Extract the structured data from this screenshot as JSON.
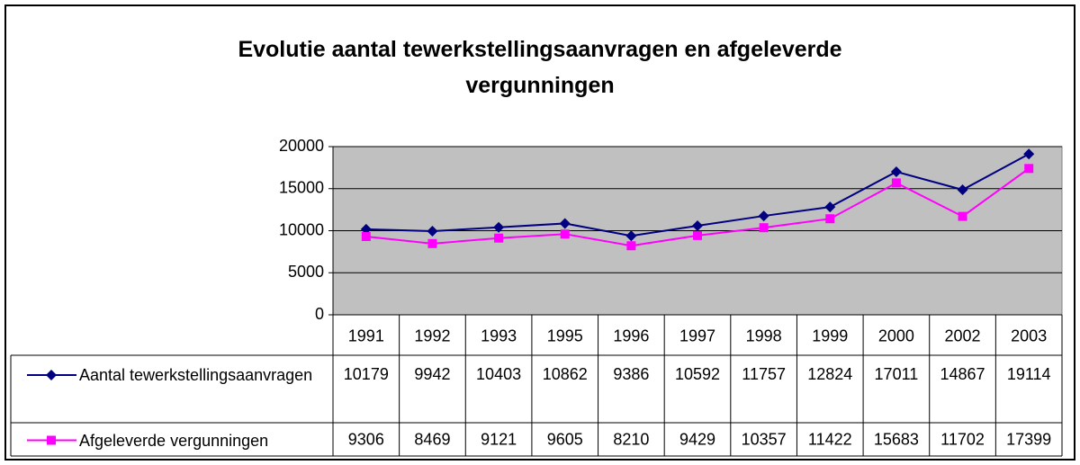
{
  "chart_data": {
    "type": "line",
    "title": "Evolutie aantal tewerkstellingsaanvragen en afgeleverde vergunningen",
    "categories": [
      "1991",
      "1992",
      "1993",
      "1995",
      "1996",
      "1997",
      "1998",
      "1999",
      "2000",
      "2002",
      "2003"
    ],
    "series": [
      {
        "name": "Aantal tewerkstellingsaanvragen",
        "color": "#000080",
        "marker": "diamond",
        "values": [
          10179,
          9942,
          10403,
          10862,
          9386,
          10592,
          11757,
          12824,
          17011,
          14867,
          19114
        ]
      },
      {
        "name": "Afgeleverde vergunningen",
        "color": "#ff00ff",
        "marker": "square",
        "values": [
          9306,
          8469,
          9121,
          9605,
          8210,
          9429,
          10357,
          11422,
          15683,
          11702,
          17399
        ]
      }
    ],
    "ylim": [
      0,
      20000
    ],
    "yticks": [
      0,
      5000,
      10000,
      15000,
      20000
    ],
    "grid": true,
    "data_table": true
  }
}
